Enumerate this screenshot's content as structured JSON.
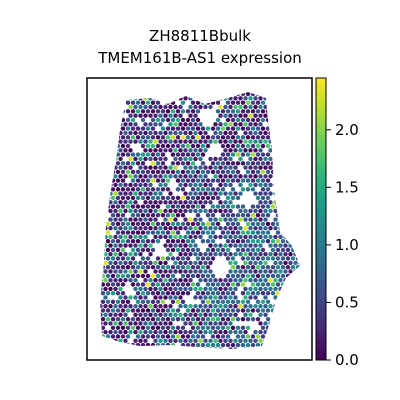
{
  "chart_data": {
    "type": "heatmap",
    "title_line1": "ZH8811Bbulk",
    "title_line2": "TMEM161B-AS1 expression",
    "xlabel": "",
    "ylabel": "",
    "axis_ticks_shown": false,
    "colormap": "viridis",
    "colorbar": {
      "range": [
        0.0,
        2.45
      ],
      "ticks": [
        0.0,
        0.5,
        1.0,
        1.5,
        2.0
      ],
      "tick_labels": [
        "0.0",
        "0.5",
        "1.0",
        "1.5",
        "2.0"
      ],
      "placement": "right"
    },
    "colors": {
      "viridis_stops": [
        "#440154",
        "#482878",
        "#3e4989",
        "#31688e",
        "#26828e",
        "#1f9e89",
        "#35b779",
        "#6ece58",
        "#b5de2b",
        "#fde725"
      ]
    },
    "description_values": {
      "value_min": 0.0,
      "value_max": 2.4,
      "typical_value": 0.35
    }
  }
}
